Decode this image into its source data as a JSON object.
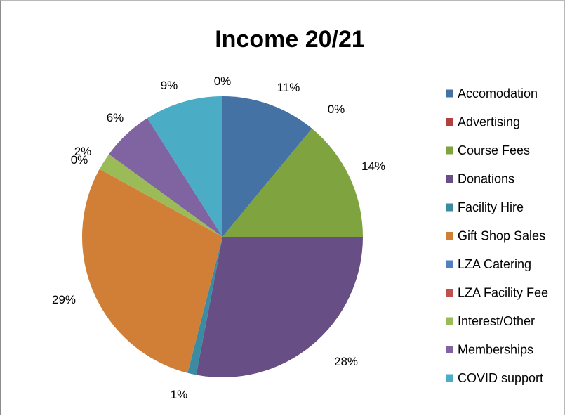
{
  "chart_data": {
    "type": "pie",
    "title": "Income 20/21",
    "legend_position": "right",
    "slices": [
      {
        "label": "Accomodation",
        "value": 11,
        "display": "11%",
        "color": "#4472a4"
      },
      {
        "label": "Advertising",
        "value": 0,
        "display": "0%",
        "color": "#b0413e"
      },
      {
        "label": "Course Fees",
        "value": 14,
        "display": "14%",
        "color": "#7fa33f"
      },
      {
        "label": "Donations",
        "value": 28,
        "display": "28%",
        "color": "#674e85"
      },
      {
        "label": "Facility Hire",
        "value": 1,
        "display": "1%",
        "color": "#3b8ba3"
      },
      {
        "label": "Gift Shop Sales",
        "value": 29,
        "display": "29%",
        "color": "#d17e36"
      },
      {
        "label": "LZA Catering",
        "value": 0,
        "display": "",
        "color": "#4f81c0"
      },
      {
        "label": "LZA Facility Fee",
        "value": 0,
        "display": "0%",
        "color": "#c0504d"
      },
      {
        "label": "Interest/Other",
        "value": 2,
        "display": "2%",
        "color": "#9bbb59"
      },
      {
        "label": "Memberships",
        "value": 6,
        "display": "6%",
        "color": "#8064a2"
      },
      {
        "label": "COVID support",
        "value": 9,
        "display": "9%",
        "color": "#4bacc6"
      }
    ],
    "top_label": "0%"
  }
}
